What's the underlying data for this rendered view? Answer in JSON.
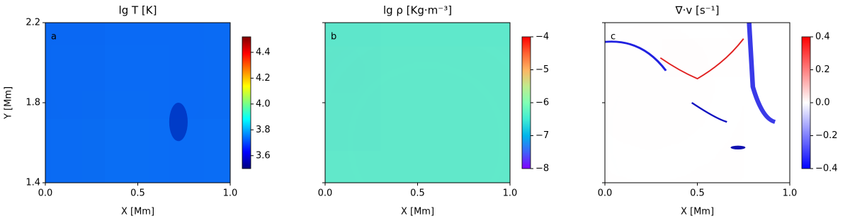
{
  "chart_data": [
    {
      "type": "heatmap",
      "title": "lg T [K]",
      "xlabel": "X [Mm]",
      "ylabel": "Y [Mm]",
      "annotation": "a",
      "colormap": "jet",
      "xlim": [
        0,
        1
      ],
      "xticks": [
        {
          "value": 0,
          "label": "0.0"
        },
        0.5,
        {
          "value": 1,
          "label": "1.0"
        }
      ],
      "ylim": [
        1.4,
        2.2
      ],
      "yticks": [
        1.4,
        1.8,
        2.2
      ],
      "clim": [
        3.5,
        4.52
      ],
      "cticks": [
        3.6,
        3.8,
        {
          "value": 4,
          "label": "4.0"
        },
        4.2,
        4.4
      ]
    },
    {
      "type": "heatmap",
      "title": "lg ρ [Kg·m⁻³]",
      "xlabel": "X [Mm]",
      "annotation": "b",
      "colormap": "rainbow",
      "xlim": [
        0,
        1
      ],
      "xticks": [
        {
          "value": 0,
          "label": "0.0"
        },
        0.5,
        {
          "value": 1,
          "label": "1.0"
        }
      ],
      "ylim": [
        1.4,
        2.2
      ],
      "yticks": [
        1.4,
        1.8,
        2.2
      ],
      "clim": [
        -8,
        -4
      ],
      "cticks": [
        {
          "value": -8,
          "label": "−8"
        },
        {
          "value": -7,
          "label": "−7"
        },
        {
          "value": -6,
          "label": "−6"
        },
        {
          "value": -5,
          "label": "−5"
        },
        {
          "value": -4,
          "label": "−4"
        }
      ]
    },
    {
      "type": "heatmap",
      "title": "∇·v [s⁻¹]",
      "xlabel": "X [Mm]",
      "annotation": "c",
      "colormap": "bwr",
      "xlim": [
        0,
        1
      ],
      "xticks": [
        {
          "value": 0,
          "label": "0.0"
        },
        0.5,
        {
          "value": 1,
          "label": "1.0"
        }
      ],
      "ylim": [
        1.4,
        2.2
      ],
      "yticks": [
        1.4,
        1.8,
        2.2
      ],
      "clim": [
        -0.4,
        0.4
      ],
      "cticks": [
        {
          "value": -0.4,
          "label": "−0.4"
        },
        {
          "value": -0.2,
          "label": "−0.2"
        },
        {
          "value": 0,
          "label": "0.0"
        },
        0.2,
        0.4
      ]
    }
  ]
}
